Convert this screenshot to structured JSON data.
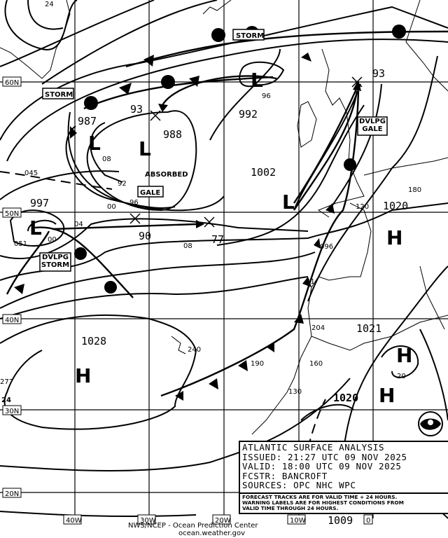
{
  "info": {
    "title": "ATLANTIC SURFACE ANALYSIS",
    "issued": "ISSUED: 21:27 UTC 09 NOV 2025",
    "valid": "VALID:  18:00 UTC 09 NOV 2025",
    "forecaster": "FCSTR:  BANCROFT",
    "sources": "SOURCES: OPC NHC WPC"
  },
  "note": [
    "FORECAST TRACKS ARE FOR VALID TIME + 24 HOURS.",
    "WARNING LABELS ARE FOR HIGHEST CONDITIONS FROM",
    "VALID TIME THROUGH 24 HOURS."
  ],
  "credit": {
    "line1": "NWS/NCEP - Ocean Prediction Center",
    "line2": "ocean.weather.gov"
  },
  "grid": {
    "lat": [
      "60N",
      "50N",
      "40N",
      "30N",
      "20N"
    ],
    "lon": [
      "40W",
      "30W",
      "20W",
      "10W",
      "0"
    ]
  },
  "pressure_labels": [
    "24",
    "987",
    "93",
    "988",
    "992",
    "93",
    "1002",
    "997",
    "90",
    "77",
    "08",
    "04",
    "00",
    "92",
    "96",
    "00",
    "96",
    "1020",
    "1028",
    "1021",
    "1020",
    "20",
    "1009",
    "08",
    "045",
    "051",
    "277",
    "24",
    "240",
    "190",
    "204",
    "160",
    "130",
    "180",
    "096",
    "120",
    "51"
  ],
  "centers": [
    "L",
    "L",
    "L",
    "L",
    "L",
    "H",
    "H",
    "H",
    "H"
  ],
  "warnings": [
    "STORM",
    "STORM",
    "GALE",
    "DVLPG GALE",
    "DVLPG STORM"
  ],
  "annotations": {
    "absorbed": "ABSORBED"
  },
  "logo": "NOAA"
}
